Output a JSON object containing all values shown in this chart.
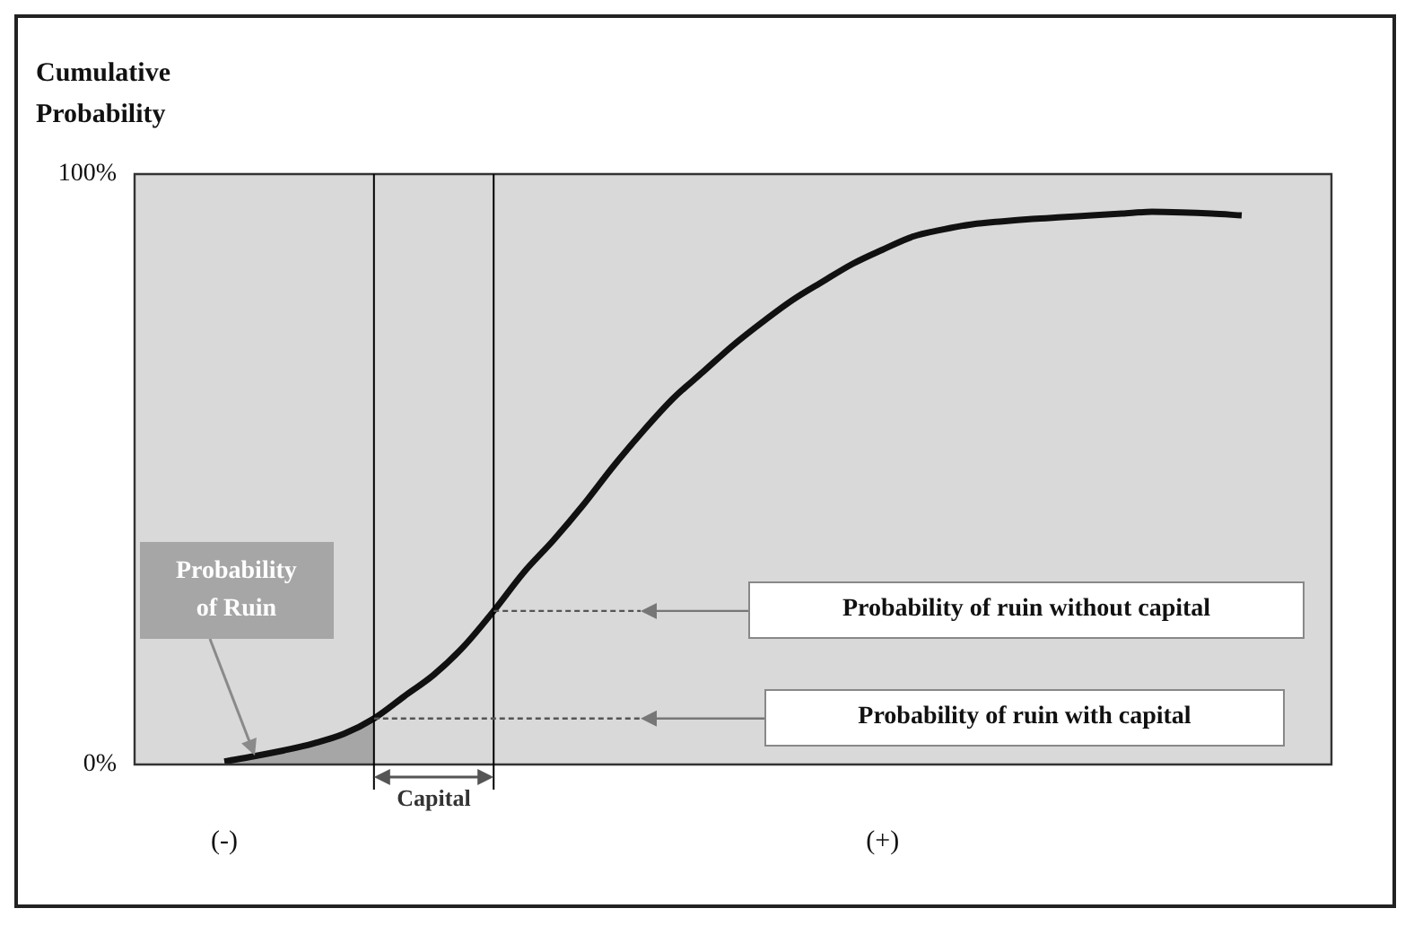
{
  "chart_data": {
    "type": "line",
    "ylabel": "Cumulative Probability",
    "categories": [
      null,
      null,
      null,
      "(-)",
      null,
      null,
      null,
      null,
      null,
      null,
      null,
      null,
      null,
      null,
      null,
      null,
      null,
      null,
      null,
      null,
      null,
      null,
      null,
      null,
      null,
      "(+)",
      null,
      null,
      null,
      null,
      null,
      null,
      null,
      null,
      null,
      null,
      null,
      null,
      null,
      null,
      null
    ],
    "ylim": [
      0,
      100
    ],
    "yticks": [
      {
        "value": 0,
        "label": "0%"
      },
      {
        "value": 100,
        "label": "100%"
      }
    ],
    "series": [
      {
        "type": "line",
        "color": "#111111",
        "values": [
          null,
          null,
          null,
          0.5,
          1.4,
          2.4,
          3.6,
          5.2,
          7.8,
          11.5,
          15.2,
          20,
          26,
          32.5,
          38,
          44,
          50.5,
          56.5,
          62,
          66.5,
          71,
          75,
          78.7,
          81.8,
          84.8,
          87.2,
          89.4,
          90.6,
          91.5,
          92,
          92.4,
          92.7,
          93,
          93.3,
          93.6,
          93.5,
          93.3,
          93,
          null,
          null,
          null
        ]
      },
      {
        "type": "area",
        "color": "#a6a6a6",
        "values": [
          null,
          null,
          null,
          0.5,
          1.4,
          2.4,
          3.6,
          5.2,
          7.8,
          null,
          null,
          null,
          null,
          null,
          null,
          null,
          null,
          null,
          null,
          null,
          null,
          null,
          null,
          null,
          null,
          null,
          null,
          null,
          null,
          null,
          null,
          null,
          null,
          null,
          null,
          null,
          null,
          null,
          null,
          null,
          null
        ]
      }
    ],
    "annotations": [
      "Probability of ruin without capital",
      "Probability of ruin with capital",
      "Probability of Ruin",
      "Capital"
    ]
  }
}
